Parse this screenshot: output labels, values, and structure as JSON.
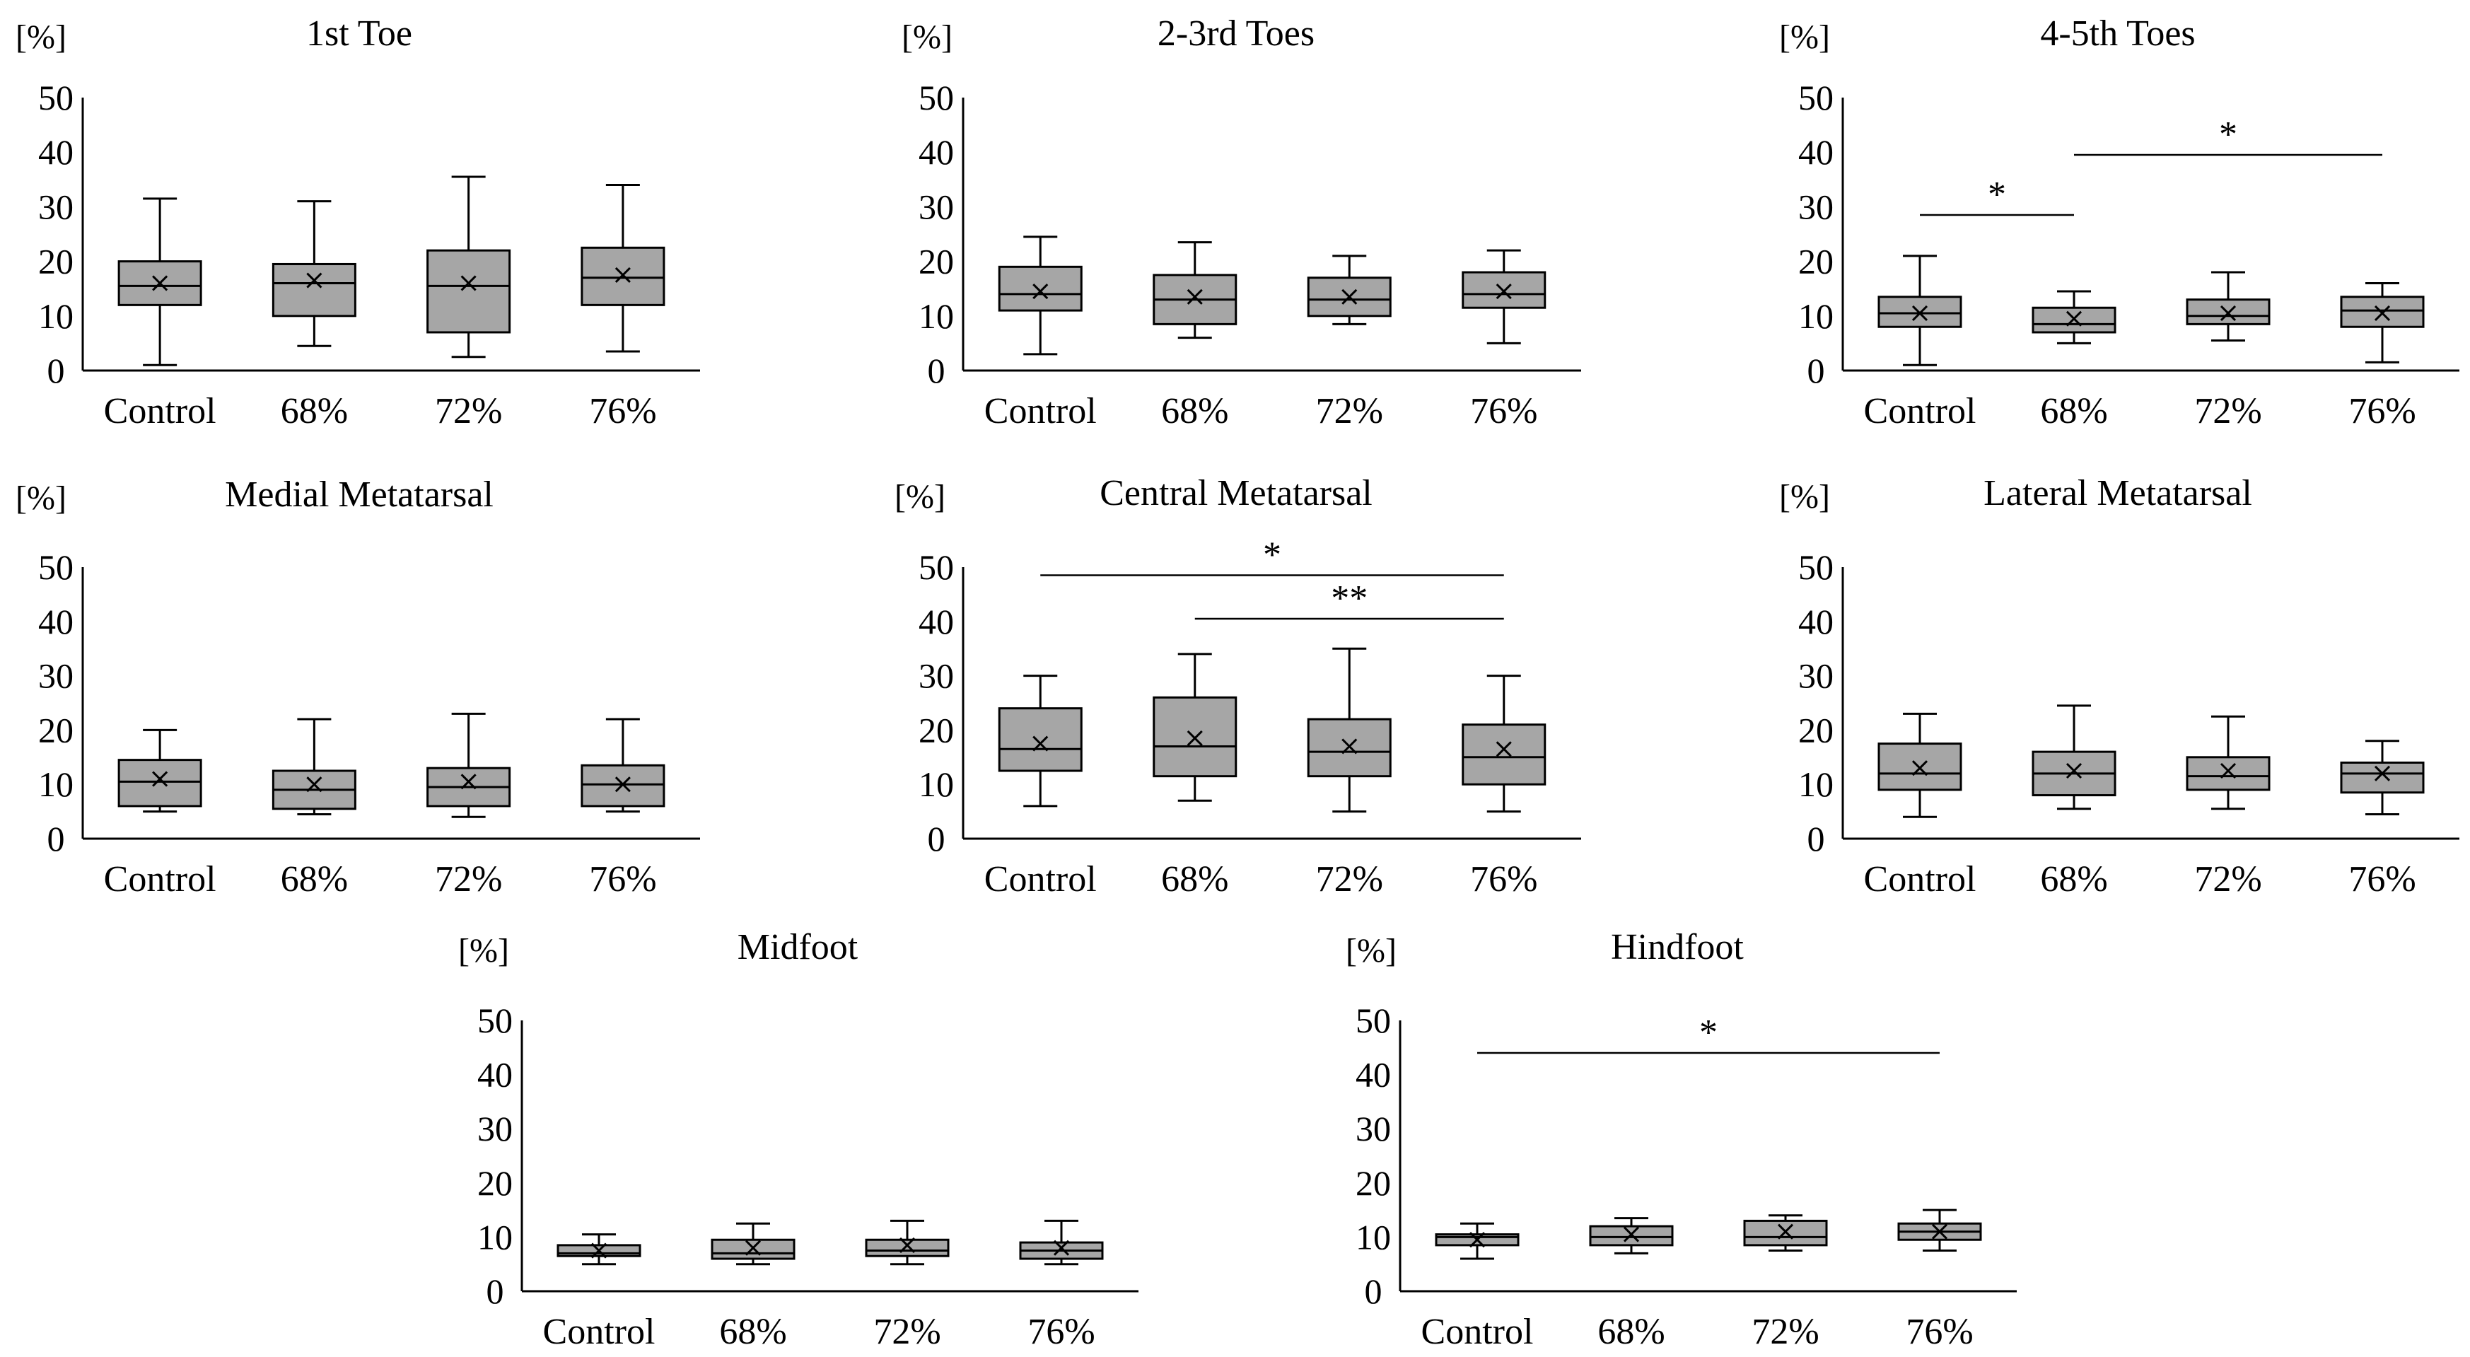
{
  "figure": {
    "colors": {
      "box_fill": "#a6a6a6",
      "stroke": "#000000",
      "background": "#ffffff"
    }
  },
  "chart_data": [
    {
      "type": "box",
      "title": "1st Toe",
      "ylabel": "[%]",
      "ylim": [
        0,
        50
      ],
      "yticks": [
        0,
        10,
        20,
        30,
        40,
        50
      ],
      "categories": [
        "Control",
        "68%",
        "72%",
        "76%"
      ],
      "boxes": [
        {
          "min": 1,
          "q1": 12,
          "median": 15.5,
          "q3": 20,
          "max": 31.5,
          "mean": 16
        },
        {
          "min": 4.5,
          "q1": 10,
          "median": 16,
          "q3": 19.5,
          "max": 31,
          "mean": 16.5
        },
        {
          "min": 2.5,
          "q1": 7,
          "median": 15.5,
          "q3": 22,
          "max": 35.5,
          "mean": 16
        },
        {
          "min": 3.5,
          "q1": 12,
          "median": 17,
          "q3": 22.5,
          "max": 34,
          "mean": 17.5
        }
      ],
      "significance": []
    },
    {
      "type": "box",
      "title": "2-3rd Toes",
      "ylabel": "[%]",
      "ylim": [
        0,
        50
      ],
      "yticks": [
        0,
        10,
        20,
        30,
        40,
        50
      ],
      "categories": [
        "Control",
        "68%",
        "72%",
        "76%"
      ],
      "boxes": [
        {
          "min": 3,
          "q1": 11,
          "median": 14,
          "q3": 19,
          "max": 24.5,
          "mean": 14.5
        },
        {
          "min": 6,
          "q1": 8.5,
          "median": 13,
          "q3": 17.5,
          "max": 23.5,
          "mean": 13.5
        },
        {
          "min": 8.5,
          "q1": 10,
          "median": 13,
          "q3": 17,
          "max": 21,
          "mean": 13.5
        },
        {
          "min": 5,
          "q1": 11.5,
          "median": 14,
          "q3": 18,
          "max": 22,
          "mean": 14.5
        }
      ],
      "significance": []
    },
    {
      "type": "box",
      "title": "4-5th Toes",
      "ylabel": "[%]",
      "ylim": [
        0,
        50
      ],
      "yticks": [
        0,
        10,
        20,
        30,
        40,
        50
      ],
      "categories": [
        "Control",
        "68%",
        "72%",
        "76%"
      ],
      "boxes": [
        {
          "min": 1,
          "q1": 8,
          "median": 10.5,
          "q3": 13.5,
          "max": 21,
          "mean": 10.5
        },
        {
          "min": 5,
          "q1": 7,
          "median": 8.5,
          "q3": 11.5,
          "max": 14.5,
          "mean": 9.5
        },
        {
          "min": 5.5,
          "q1": 8.5,
          "median": 10,
          "q3": 13,
          "max": 18,
          "mean": 10.5
        },
        {
          "min": 1.5,
          "q1": 8,
          "median": 11,
          "q3": 13.5,
          "max": 16,
          "mean": 10.5
        }
      ],
      "significance": [
        {
          "from": 0,
          "to": 1,
          "label": "*",
          "y": 28.5
        },
        {
          "from": 1,
          "to": 3,
          "label": "*",
          "y": 39.5
        }
      ]
    },
    {
      "type": "box",
      "title": "Medial Metatarsal",
      "ylabel": "[%]",
      "ylim": [
        0,
        50
      ],
      "yticks": [
        0,
        10,
        20,
        30,
        40,
        50
      ],
      "categories": [
        "Control",
        "68%",
        "72%",
        "76%"
      ],
      "boxes": [
        {
          "min": 5,
          "q1": 6,
          "median": 10.5,
          "q3": 14.5,
          "max": 20,
          "mean": 11
        },
        {
          "min": 4.5,
          "q1": 5.5,
          "median": 9,
          "q3": 12.5,
          "max": 22,
          "mean": 10
        },
        {
          "min": 4,
          "q1": 6,
          "median": 9.5,
          "q3": 13,
          "max": 23,
          "mean": 10.5
        },
        {
          "min": 5,
          "q1": 6,
          "median": 10,
          "q3": 13.5,
          "max": 22,
          "mean": 10
        }
      ],
      "significance": []
    },
    {
      "type": "box",
      "title": "Central Metatarsal",
      "ylabel": "[%]",
      "ylim": [
        0,
        50
      ],
      "yticks": [
        0,
        10,
        20,
        30,
        40,
        50
      ],
      "categories": [
        "Control",
        "68%",
        "72%",
        "76%"
      ],
      "boxes": [
        {
          "min": 6,
          "q1": 12.5,
          "median": 16.5,
          "q3": 24,
          "max": 30,
          "mean": 17.5
        },
        {
          "min": 7,
          "q1": 11.5,
          "median": 17,
          "q3": 26,
          "max": 34,
          "mean": 18.5
        },
        {
          "min": 5,
          "q1": 11.5,
          "median": 16,
          "q3": 22,
          "max": 35,
          "mean": 17
        },
        {
          "min": 5,
          "q1": 10,
          "median": 15,
          "q3": 21,
          "max": 30,
          "mean": 16.5
        }
      ],
      "significance": [
        {
          "from": 0,
          "to": 3,
          "label": "*",
          "y": 48.5
        },
        {
          "from": 1,
          "to": 3,
          "label": "**",
          "y": 40.5
        }
      ]
    },
    {
      "type": "box",
      "title": "Lateral Metatarsal",
      "ylabel": "[%]",
      "ylim": [
        0,
        50
      ],
      "yticks": [
        0,
        10,
        20,
        30,
        40,
        50
      ],
      "categories": [
        "Control",
        "68%",
        "72%",
        "76%"
      ],
      "boxes": [
        {
          "min": 4,
          "q1": 9,
          "median": 12,
          "q3": 17.5,
          "max": 23,
          "mean": 13
        },
        {
          "min": 5.5,
          "q1": 8,
          "median": 12,
          "q3": 16,
          "max": 24.5,
          "mean": 12.5
        },
        {
          "min": 5.5,
          "q1": 9,
          "median": 11.5,
          "q3": 15,
          "max": 22.5,
          "mean": 12.5
        },
        {
          "min": 4.5,
          "q1": 8.5,
          "median": 12,
          "q3": 14,
          "max": 18,
          "mean": 12
        }
      ],
      "significance": []
    },
    {
      "type": "box",
      "title": "Midfoot",
      "ylabel": "[%]",
      "ylim": [
        0,
        50
      ],
      "yticks": [
        0,
        10,
        20,
        30,
        40,
        50
      ],
      "categories": [
        "Control",
        "68%",
        "72%",
        "76%"
      ],
      "boxes": [
        {
          "min": 5,
          "q1": 6.5,
          "median": 7,
          "q3": 8.5,
          "max": 10.5,
          "mean": 7.5
        },
        {
          "min": 5,
          "q1": 6,
          "median": 7,
          "q3": 9.5,
          "max": 12.5,
          "mean": 8
        },
        {
          "min": 5,
          "q1": 6.5,
          "median": 7.5,
          "q3": 9.5,
          "max": 13,
          "mean": 8.5
        },
        {
          "min": 5,
          "q1": 6,
          "median": 7.5,
          "q3": 9,
          "max": 13,
          "mean": 8
        }
      ],
      "significance": []
    },
    {
      "type": "box",
      "title": "Hindfoot",
      "ylabel": "[%]",
      "ylim": [
        0,
        50
      ],
      "yticks": [
        0,
        10,
        20,
        30,
        40,
        50
      ],
      "categories": [
        "Control",
        "68%",
        "72%",
        "76%"
      ],
      "boxes": [
        {
          "min": 6,
          "q1": 8.5,
          "median": 10,
          "q3": 10.5,
          "max": 12.5,
          "mean": 9.5
        },
        {
          "min": 7,
          "q1": 8.5,
          "median": 10,
          "q3": 12,
          "max": 13.5,
          "mean": 10.5
        },
        {
          "min": 7.5,
          "q1": 8.5,
          "median": 10,
          "q3": 13,
          "max": 14,
          "mean": 11
        },
        {
          "min": 7.5,
          "q1": 9.5,
          "median": 11,
          "q3": 12.5,
          "max": 15,
          "mean": 11
        }
      ],
      "significance": [
        {
          "from": 0,
          "to": 3,
          "label": "*",
          "y": 44
        }
      ]
    }
  ]
}
